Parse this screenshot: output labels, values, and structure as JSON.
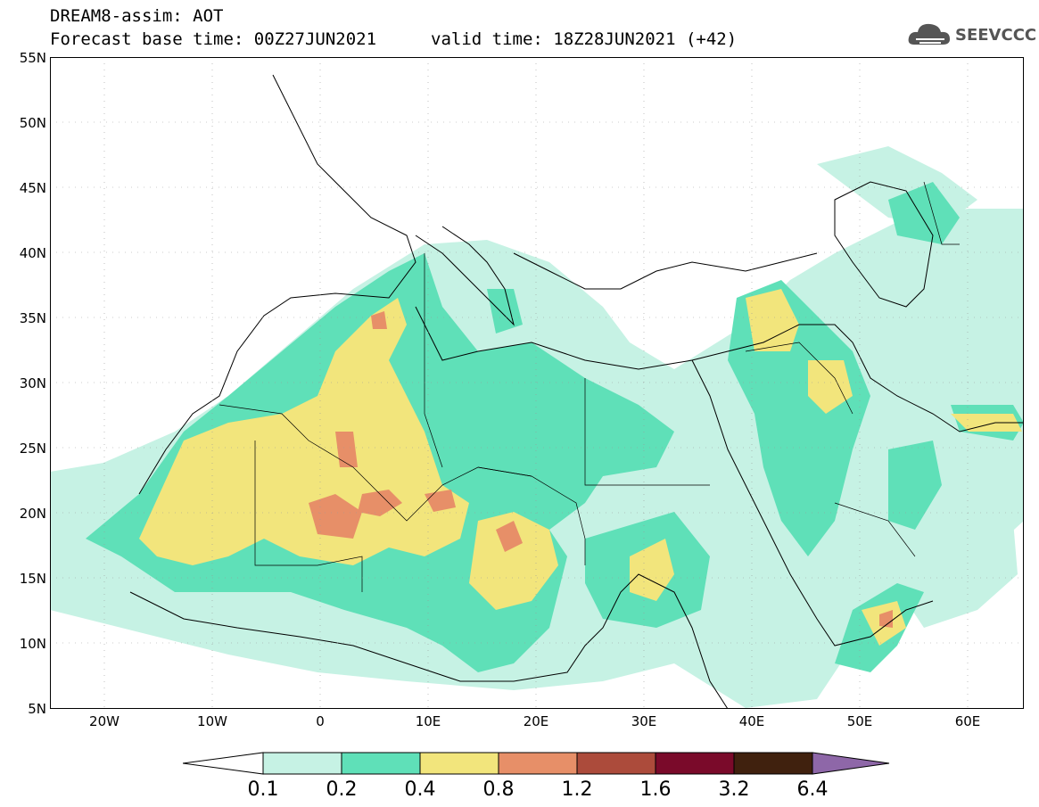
{
  "header": {
    "title": "DREAM8-assim: AOT",
    "base_time": "Forecast base time: 00Z27JUN2021",
    "valid_time": "valid time: 18Z28JUN2021 (+42)"
  },
  "logo": {
    "text": "SEEVCCC",
    "icon": "cloud-icon"
  },
  "map": {
    "y_ticks": [
      "55N",
      "50N",
      "45N",
      "40N",
      "35N",
      "30N",
      "25N",
      "20N",
      "15N",
      "10N",
      "5N"
    ],
    "x_ticks": [
      "20W",
      "10W",
      "0",
      "10E",
      "20E",
      "30E",
      "40E",
      "50E",
      "60E"
    ],
    "lon_range": [
      -25,
      65
    ],
    "lat_range": [
      5,
      55
    ]
  },
  "colorbar": {
    "labels": [
      "0.1",
      "0.2",
      "0.4",
      "0.8",
      "1.2",
      "1.6",
      "3.2",
      "6.4"
    ],
    "colors": [
      "#ffffff",
      "#c6f2e4",
      "#5fe0b8",
      "#f2e57c",
      "#e78f68",
      "#ac4b3b",
      "#7a0a2a",
      "#40210e",
      "#8e67a8"
    ]
  }
}
